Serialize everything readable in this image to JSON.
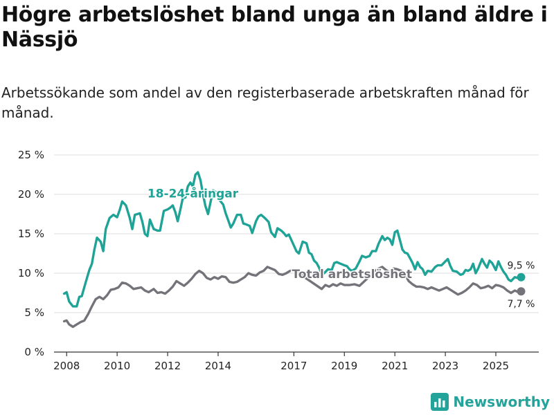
{
  "title": "Högre arbetslöshet bland unga än bland äldre i Nässjö",
  "subtitle": "Arbetssökande som andel av den registerbaserade arbetskraften månad för månad.",
  "brand": {
    "name": "Newsworthy",
    "icon": "bar-chart-logo-icon"
  },
  "colors": {
    "youth": "#1ea396",
    "total": "#75737a",
    "grid": "#dddddd",
    "axis": "#333333",
    "brand": "#24a39a"
  },
  "chart_data": {
    "type": "line",
    "ylim": [
      0,
      25
    ],
    "y_ticks": [
      0,
      5,
      10,
      15,
      20,
      25
    ],
    "y_tick_labels": [
      "0 %",
      "5 %",
      "10 %",
      "15 %",
      "20 %",
      "25 %"
    ],
    "xlim": [
      2007.5,
      2026.7
    ],
    "x_ticks": [
      2008,
      2010,
      2012,
      2014,
      2017,
      2019,
      2021,
      2023,
      2025
    ],
    "x_tick_labels": [
      "2008",
      "2010",
      "2012",
      "2014",
      "2017",
      "2019",
      "2021",
      "2023",
      "2025"
    ],
    "grid": "horizontal",
    "series": [
      {
        "key": "youth",
        "name": "18-24-åringar",
        "label_at": [
          2013.0,
          19.6
        ],
        "end_label": "9,5 %",
        "end_value": 9.5,
        "points": [
          [
            2007.9,
            7.4
          ],
          [
            2008.0,
            7.6
          ],
          [
            2008.1,
            6.4
          ],
          [
            2008.25,
            5.8
          ],
          [
            2008.4,
            5.8
          ],
          [
            2008.5,
            7.0
          ],
          [
            2008.6,
            7.1
          ],
          [
            2008.75,
            8.8
          ],
          [
            2008.9,
            10.4
          ],
          [
            2009.0,
            11.2
          ],
          [
            2009.1,
            13.0
          ],
          [
            2009.2,
            14.5
          ],
          [
            2009.35,
            14.0
          ],
          [
            2009.45,
            12.8
          ],
          [
            2009.55,
            15.6
          ],
          [
            2009.7,
            17.0
          ],
          [
            2009.85,
            17.4
          ],
          [
            2010.0,
            17.1
          ],
          [
            2010.1,
            18.0
          ],
          [
            2010.2,
            19.1
          ],
          [
            2010.35,
            18.6
          ],
          [
            2010.5,
            17.0
          ],
          [
            2010.6,
            15.6
          ],
          [
            2010.7,
            17.4
          ],
          [
            2010.9,
            17.6
          ],
          [
            2011.0,
            16.5
          ],
          [
            2011.1,
            15.0
          ],
          [
            2011.2,
            14.7
          ],
          [
            2011.3,
            16.8
          ],
          [
            2011.45,
            15.6
          ],
          [
            2011.6,
            15.4
          ],
          [
            2011.7,
            15.4
          ],
          [
            2011.85,
            17.9
          ],
          [
            2012.0,
            18.1
          ],
          [
            2012.1,
            18.3
          ],
          [
            2012.2,
            18.6
          ],
          [
            2012.3,
            17.8
          ],
          [
            2012.4,
            16.6
          ],
          [
            2012.5,
            18.0
          ],
          [
            2012.6,
            19.5
          ],
          [
            2012.7,
            19.6
          ],
          [
            2012.8,
            21.0
          ],
          [
            2012.9,
            21.5
          ],
          [
            2013.0,
            21.0
          ],
          [
            2013.1,
            22.5
          ],
          [
            2013.2,
            22.8
          ],
          [
            2013.3,
            21.8
          ],
          [
            2013.4,
            20.0
          ],
          [
            2013.5,
            18.5
          ],
          [
            2013.6,
            17.5
          ],
          [
            2013.7,
            19.0
          ],
          [
            2013.8,
            20.5
          ],
          [
            2013.9,
            20.3
          ],
          [
            2014.0,
            19.5
          ],
          [
            2014.2,
            18.7
          ],
          [
            2014.3,
            17.6
          ],
          [
            2014.4,
            16.7
          ],
          [
            2014.5,
            15.8
          ],
          [
            2014.6,
            16.3
          ],
          [
            2014.75,
            17.4
          ],
          [
            2014.9,
            17.4
          ],
          [
            2015.0,
            16.3
          ],
          [
            2015.1,
            16.2
          ],
          [
            2015.25,
            16.0
          ],
          [
            2015.35,
            15.1
          ],
          [
            2015.5,
            16.6
          ],
          [
            2015.6,
            17.2
          ],
          [
            2015.7,
            17.4
          ],
          [
            2015.85,
            17.0
          ],
          [
            2016.0,
            16.5
          ],
          [
            2016.1,
            15.2
          ],
          [
            2016.25,
            14.6
          ],
          [
            2016.35,
            15.7
          ],
          [
            2016.5,
            15.4
          ],
          [
            2016.6,
            15.1
          ],
          [
            2016.7,
            14.7
          ],
          [
            2016.8,
            14.9
          ],
          [
            2017.0,
            13.5
          ],
          [
            2017.1,
            12.8
          ],
          [
            2017.2,
            12.5
          ],
          [
            2017.35,
            14.0
          ],
          [
            2017.5,
            13.8
          ],
          [
            2017.6,
            12.6
          ],
          [
            2017.7,
            12.4
          ],
          [
            2017.8,
            11.6
          ],
          [
            2017.9,
            11.3
          ],
          [
            2018.0,
            10.7
          ],
          [
            2018.1,
            9.9
          ],
          [
            2018.2,
            10.0
          ],
          [
            2018.35,
            10.5
          ],
          [
            2018.5,
            10.4
          ],
          [
            2018.6,
            11.3
          ],
          [
            2018.7,
            11.4
          ],
          [
            2018.85,
            11.2
          ],
          [
            2019.0,
            11.0
          ],
          [
            2019.1,
            10.9
          ],
          [
            2019.2,
            10.5
          ],
          [
            2019.3,
            10.3
          ],
          [
            2019.45,
            10.6
          ],
          [
            2019.6,
            11.5
          ],
          [
            2019.7,
            12.2
          ],
          [
            2019.85,
            12.0
          ],
          [
            2020.0,
            12.2
          ],
          [
            2020.1,
            12.8
          ],
          [
            2020.25,
            12.8
          ],
          [
            2020.35,
            13.7
          ],
          [
            2020.5,
            14.7
          ],
          [
            2020.6,
            14.2
          ],
          [
            2020.7,
            14.5
          ],
          [
            2020.8,
            14.3
          ],
          [
            2020.9,
            13.6
          ],
          [
            2021.0,
            15.2
          ],
          [
            2021.1,
            15.4
          ],
          [
            2021.2,
            14.2
          ],
          [
            2021.3,
            13.0
          ],
          [
            2021.4,
            12.6
          ],
          [
            2021.5,
            12.5
          ],
          [
            2021.6,
            11.9
          ],
          [
            2021.7,
            11.3
          ],
          [
            2021.8,
            10.5
          ],
          [
            2021.9,
            11.4
          ],
          [
            2022.0,
            10.8
          ],
          [
            2022.1,
            10.5
          ],
          [
            2022.2,
            9.8
          ],
          [
            2022.3,
            10.3
          ],
          [
            2022.45,
            10.2
          ],
          [
            2022.6,
            10.8
          ],
          [
            2022.7,
            11.0
          ],
          [
            2022.85,
            11.0
          ],
          [
            2023.0,
            11.5
          ],
          [
            2023.1,
            11.8
          ],
          [
            2023.2,
            10.9
          ],
          [
            2023.3,
            10.3
          ],
          [
            2023.45,
            10.2
          ],
          [
            2023.6,
            9.8
          ],
          [
            2023.7,
            9.9
          ],
          [
            2023.8,
            10.4
          ],
          [
            2023.9,
            10.3
          ],
          [
            2024.0,
            10.5
          ],
          [
            2024.1,
            11.2
          ],
          [
            2024.2,
            10.0
          ],
          [
            2024.3,
            10.6
          ],
          [
            2024.45,
            11.8
          ],
          [
            2024.55,
            11.2
          ],
          [
            2024.65,
            10.7
          ],
          [
            2024.75,
            11.6
          ],
          [
            2024.85,
            11.3
          ],
          [
            2025.0,
            10.4
          ],
          [
            2025.1,
            11.5
          ],
          [
            2025.2,
            10.8
          ],
          [
            2025.3,
            10.2
          ],
          [
            2025.4,
            9.8
          ],
          [
            2025.5,
            9.2
          ],
          [
            2025.6,
            9.0
          ],
          [
            2025.75,
            9.5
          ],
          [
            2025.85,
            9.4
          ],
          [
            2026.0,
            9.5
          ]
        ]
      },
      {
        "key": "total",
        "name": "Total arbetslöshet",
        "label_at": [
          2019.3,
          9.4
        ],
        "end_label": "7,7 %",
        "end_value": 7.7,
        "points": [
          [
            2007.9,
            3.9
          ],
          [
            2008.0,
            4.0
          ],
          [
            2008.1,
            3.5
          ],
          [
            2008.25,
            3.2
          ],
          [
            2008.4,
            3.5
          ],
          [
            2008.55,
            3.8
          ],
          [
            2008.7,
            4.0
          ],
          [
            2008.85,
            4.8
          ],
          [
            2009.0,
            5.8
          ],
          [
            2009.15,
            6.7
          ],
          [
            2009.3,
            7.0
          ],
          [
            2009.45,
            6.7
          ],
          [
            2009.6,
            7.2
          ],
          [
            2009.75,
            7.9
          ],
          [
            2009.9,
            8.0
          ],
          [
            2010.05,
            8.2
          ],
          [
            2010.2,
            8.8
          ],
          [
            2010.35,
            8.7
          ],
          [
            2010.5,
            8.4
          ],
          [
            2010.65,
            8.0
          ],
          [
            2010.8,
            8.1
          ],
          [
            2010.95,
            8.2
          ],
          [
            2011.1,
            7.8
          ],
          [
            2011.25,
            7.6
          ],
          [
            2011.45,
            8.0
          ],
          [
            2011.6,
            7.5
          ],
          [
            2011.75,
            7.6
          ],
          [
            2011.9,
            7.4
          ],
          [
            2012.05,
            7.8
          ],
          [
            2012.2,
            8.3
          ],
          [
            2012.35,
            9.0
          ],
          [
            2012.5,
            8.7
          ],
          [
            2012.65,
            8.4
          ],
          [
            2012.8,
            8.8
          ],
          [
            2012.95,
            9.3
          ],
          [
            2013.1,
            9.9
          ],
          [
            2013.25,
            10.3
          ],
          [
            2013.4,
            10.0
          ],
          [
            2013.55,
            9.4
          ],
          [
            2013.7,
            9.2
          ],
          [
            2013.85,
            9.5
          ],
          [
            2014.0,
            9.3
          ],
          [
            2014.15,
            9.6
          ],
          [
            2014.3,
            9.5
          ],
          [
            2014.45,
            8.9
          ],
          [
            2014.6,
            8.8
          ],
          [
            2014.75,
            8.9
          ],
          [
            2014.9,
            9.2
          ],
          [
            2015.05,
            9.5
          ],
          [
            2015.2,
            10.0
          ],
          [
            2015.35,
            9.8
          ],
          [
            2015.5,
            9.7
          ],
          [
            2015.65,
            10.1
          ],
          [
            2015.8,
            10.3
          ],
          [
            2015.95,
            10.8
          ],
          [
            2016.1,
            10.6
          ],
          [
            2016.25,
            10.4
          ],
          [
            2016.4,
            9.9
          ],
          [
            2016.55,
            9.8
          ],
          [
            2016.7,
            10.0
          ],
          [
            2016.85,
            10.3
          ],
          [
            2017.0,
            10.4
          ],
          [
            2018.1,
            8.0
          ],
          [
            2018.25,
            8.5
          ],
          [
            2018.4,
            8.3
          ],
          [
            2018.55,
            8.6
          ],
          [
            2018.7,
            8.4
          ],
          [
            2018.85,
            8.7
          ],
          [
            2019.0,
            8.5
          ],
          [
            2019.2,
            8.5
          ],
          [
            2019.4,
            8.6
          ],
          [
            2019.6,
            8.4
          ],
          [
            2020.3,
            10.5
          ],
          [
            2020.5,
            10.8
          ],
          [
            2020.65,
            10.4
          ],
          [
            2020.8,
            10.1
          ],
          [
            2020.95,
            10.6
          ],
          [
            2021.1,
            10.5
          ],
          [
            2021.25,
            10.3
          ],
          [
            2021.4,
            9.8
          ],
          [
            2021.55,
            9.0
          ],
          [
            2021.7,
            8.6
          ],
          [
            2021.85,
            8.3
          ],
          [
            2022.0,
            8.3
          ],
          [
            2022.15,
            8.2
          ],
          [
            2022.3,
            8.0
          ],
          [
            2022.45,
            8.2
          ],
          [
            2022.6,
            8.0
          ],
          [
            2022.75,
            7.8
          ],
          [
            2022.9,
            8.0
          ],
          [
            2023.05,
            8.2
          ],
          [
            2023.2,
            7.9
          ],
          [
            2023.35,
            7.6
          ],
          [
            2023.5,
            7.3
          ],
          [
            2023.65,
            7.5
          ],
          [
            2023.8,
            7.8
          ],
          [
            2023.95,
            8.2
          ],
          [
            2024.1,
            8.7
          ],
          [
            2024.25,
            8.5
          ],
          [
            2024.4,
            8.1
          ],
          [
            2024.55,
            8.2
          ],
          [
            2024.7,
            8.4
          ],
          [
            2024.85,
            8.1
          ],
          [
            2025.0,
            8.5
          ],
          [
            2025.15,
            8.4
          ],
          [
            2025.3,
            8.2
          ],
          [
            2025.45,
            7.8
          ],
          [
            2025.6,
            7.5
          ],
          [
            2025.75,
            7.8
          ],
          [
            2025.9,
            7.6
          ],
          [
            2026.0,
            7.7
          ]
        ]
      }
    ]
  }
}
